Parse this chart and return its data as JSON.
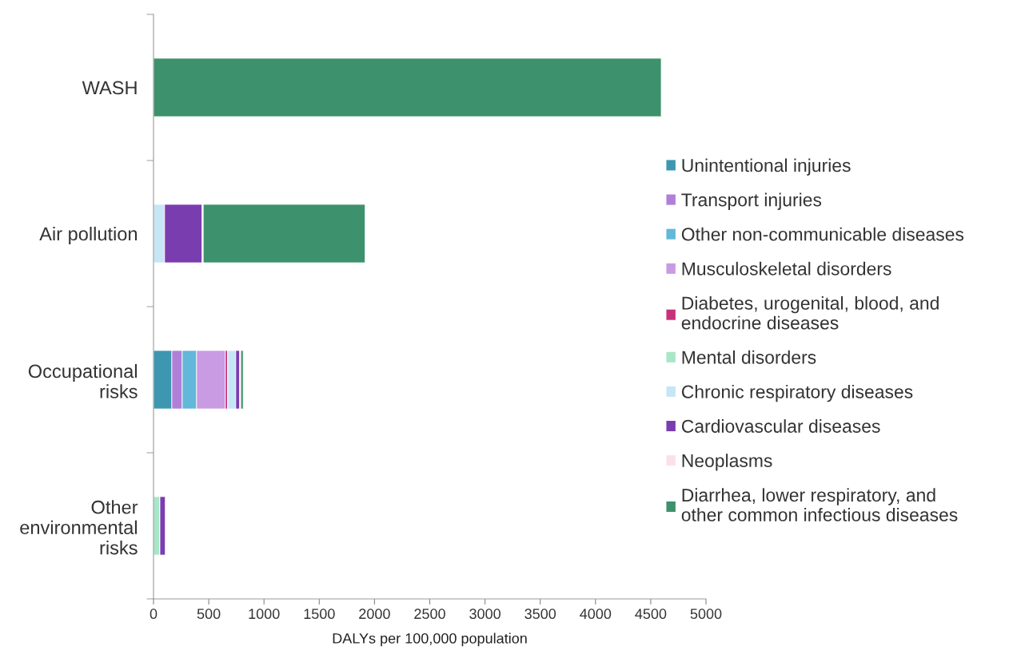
{
  "chart_data": {
    "type": "bar",
    "orientation": "horizontal",
    "stacked": true,
    "xlabel": "DALYs per 100,000 population",
    "categories": [
      "WASH",
      "Air pollution",
      "Occupational\nrisks",
      "Other\nenvironmental\nrisks"
    ],
    "xlim": [
      0,
      5000
    ],
    "xticks": [
      0,
      500,
      1000,
      1500,
      2000,
      2500,
      3000,
      3500,
      4000,
      4500,
      5000
    ],
    "grid": false,
    "legend": "right",
    "series": [
      {
        "name": "Unintentional injuries",
        "color": "#3d97b0",
        "values": [
          0,
          0,
          166,
          0
        ]
      },
      {
        "name": "Transport injuries",
        "color": "#b07fd8",
        "values": [
          0,
          0,
          94,
          0
        ]
      },
      {
        "name": "Other non-communicable diseases",
        "color": "#63b7d8",
        "values": [
          0,
          0,
          130,
          0
        ]
      },
      {
        "name": "Musculoskeletal disorders",
        "color": "#c99be3",
        "values": [
          0,
          0,
          260,
          0
        ]
      },
      {
        "name": "Diabetes, urogenital, blood, and\nendocrine diseases",
        "color": "#c8317a",
        "values": [
          0,
          0,
          22,
          0
        ]
      },
      {
        "name": "Mental disorders",
        "color": "#a8e6c8",
        "values": [
          0,
          0,
          0,
          58
        ]
      },
      {
        "name": "Chronic respiratory diseases",
        "color": "#c6e6f6",
        "values": [
          0,
          100,
          72,
          0
        ]
      },
      {
        "name": "Cardiovascular diseases",
        "color": "#7a3db0",
        "values": [
          0,
          340,
          36,
          50
        ]
      },
      {
        "name": "Neoplasms",
        "color": "#fbe0ec",
        "values": [
          0,
          10,
          10,
          5
        ]
      },
      {
        "name": "Diarrhea, lower respiratory, and\nother common infectious diseases",
        "color": "#3e916d",
        "values": [
          4595,
          1465,
          22,
          0
        ]
      }
    ]
  }
}
